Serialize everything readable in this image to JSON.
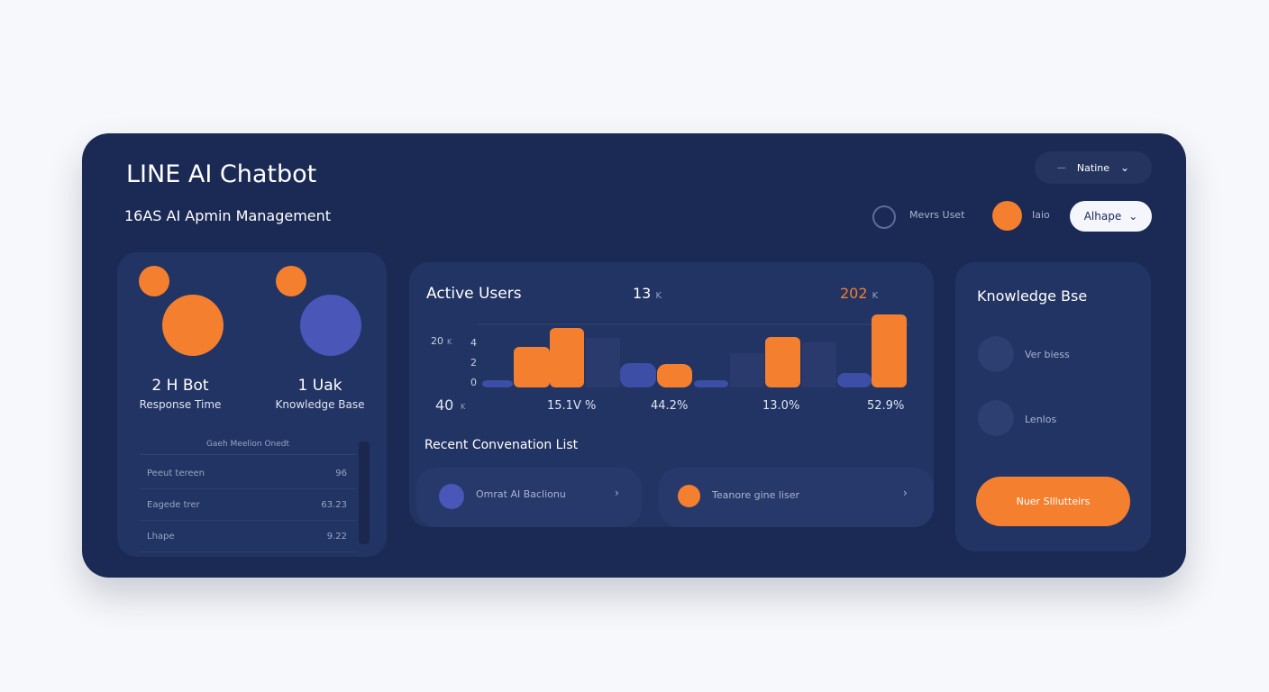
{
  "header": {
    "title": "LINE AI Chatbot",
    "subtitle": "16AS AI Apmin Management"
  },
  "controls": {
    "menu": "Natine",
    "user": "Mevrs Uset",
    "status": "Iaio",
    "select": "Alhape"
  },
  "stats": [
    {
      "value": "2 H Bot",
      "label": "Response Time"
    },
    {
      "value": "1 Uak",
      "label": "Knowledge Base"
    }
  ],
  "table": {
    "header": "Gaeh Meelion Onedt",
    "rows": [
      [
        "Peeut tereen",
        "96"
      ],
      [
        "Eagede trer",
        "63.23"
      ],
      [
        "Lhape",
        "9.22"
      ]
    ]
  },
  "active_users": {
    "title": "Active Users",
    "count_a": "13",
    "count_a_unit": "K",
    "count_b": "202",
    "count_b_unit": "K",
    "axis": [
      "20",
      "4",
      "2",
      "0"
    ],
    "axis_unit": "K",
    "footer": [
      "40",
      "15.1V %",
      "44.2%",
      "13.0%",
      "52.9%"
    ],
    "footer_unit": "K"
  },
  "conversations": {
    "title": "Recent Convenation List",
    "items": [
      "Omrat AI Baclionu",
      "Teanore gine liser"
    ]
  },
  "knowledge": {
    "title": "Knowledge Bse",
    "items": [
      "Ver biess",
      "Lenlos"
    ],
    "button": "Nuer Slllutteirs"
  }
}
